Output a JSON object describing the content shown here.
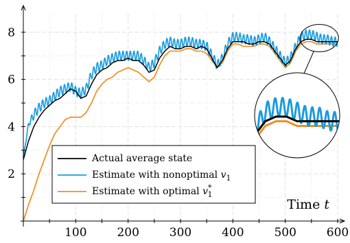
{
  "chart_data": {
    "type": "line",
    "xlabel": "Time t",
    "xlabel_text": "Time",
    "xlabel_var": "t",
    "ylabel": "",
    "xlim": [
      0,
      600
    ],
    "ylim": [
      0,
      8.9
    ],
    "x_ticks": [
      100,
      200,
      300,
      400,
      500,
      600
    ],
    "x_tick_labels": [
      "100",
      "200",
      "300",
      "400",
      "500",
      "600"
    ],
    "y_ticks": [
      2,
      4,
      6,
      8
    ],
    "y_tick_labels": [
      "2",
      "4",
      "6",
      "8"
    ],
    "grid": true,
    "legend_position": "bottom-left",
    "inset_zoom": {
      "x_range": [
        520,
        600
      ],
      "y_range": [
        7.2,
        8.2
      ],
      "placement": "right, below the series"
    },
    "series": [
      {
        "name": "Actual average state",
        "color": "#000000",
        "x": [
          0,
          5,
          10,
          20,
          30,
          40,
          50,
          60,
          70,
          80,
          90,
          100,
          110,
          120,
          130,
          140,
          150,
          160,
          170,
          180,
          190,
          200,
          210,
          220,
          230,
          240,
          250,
          260,
          270,
          280,
          290,
          300,
          310,
          320,
          330,
          340,
          350,
          360,
          370,
          380,
          390,
          400,
          410,
          420,
          430,
          440,
          450,
          460,
          470,
          480,
          490,
          500,
          510,
          520,
          530,
          540,
          550,
          560,
          570,
          580,
          590,
          600
        ],
        "values": [
          2.6,
          3.0,
          3.4,
          4.0,
          4.4,
          4.7,
          4.9,
          5.1,
          5.2,
          5.4,
          5.6,
          5.5,
          5.2,
          5.3,
          5.8,
          6.2,
          6.4,
          6.5,
          6.7,
          6.8,
          6.8,
          6.9,
          6.8,
          6.8,
          6.6,
          6.3,
          6.4,
          6.9,
          7.2,
          7.4,
          7.3,
          7.3,
          7.4,
          7.4,
          7.3,
          7.4,
          7.3,
          6.9,
          6.5,
          6.8,
          7.3,
          7.6,
          7.6,
          7.6,
          7.5,
          7.5,
          7.6,
          7.6,
          7.5,
          7.2,
          6.9,
          6.6,
          6.8,
          7.3,
          7.6,
          7.7,
          7.7,
          7.6,
          7.6,
          7.6,
          7.6,
          7.6
        ]
      },
      {
        "name": "Estimate with nonoptimal v1",
        "color": "#1a9cdf",
        "x": [
          0,
          5,
          10,
          20,
          30,
          40,
          50,
          60,
          70,
          80,
          90,
          100,
          110,
          120,
          130,
          140,
          150,
          160,
          170,
          180,
          190,
          200,
          210,
          220,
          230,
          240,
          250,
          260,
          270,
          280,
          290,
          300,
          310,
          320,
          330,
          340,
          350,
          360,
          370,
          380,
          390,
          400,
          410,
          420,
          430,
          440,
          450,
          460,
          470,
          480,
          490,
          500,
          510,
          520,
          530,
          540,
          550,
          560,
          570,
          580,
          590,
          600
        ],
        "values": [
          2.7,
          3.4,
          4.1,
          4.5,
          4.8,
          5.0,
          5.1,
          5.3,
          5.5,
          5.6,
          5.7,
          5.5,
          5.4,
          5.6,
          6.2,
          6.5,
          6.6,
          6.8,
          6.9,
          7.0,
          7.0,
          7.0,
          7.0,
          7.0,
          6.8,
          6.5,
          6.7,
          7.2,
          7.5,
          7.6,
          7.5,
          7.5,
          7.6,
          7.6,
          7.5,
          7.5,
          7.4,
          7.0,
          6.6,
          6.9,
          7.5,
          7.8,
          7.8,
          7.7,
          7.7,
          7.6,
          7.7,
          7.8,
          7.6,
          7.3,
          7.0,
          6.7,
          6.9,
          7.4,
          7.8,
          7.9,
          7.9,
          7.8,
          7.7,
          7.7,
          7.6,
          7.6
        ],
        "oscillation_amplitude": 0.2
      },
      {
        "name": "Estimate with optimal v1*",
        "color": "#f28c1c",
        "x": [
          0,
          5,
          10,
          20,
          30,
          40,
          50,
          60,
          70,
          80,
          90,
          100,
          110,
          120,
          130,
          140,
          150,
          160,
          170,
          180,
          190,
          200,
          210,
          220,
          230,
          240,
          250,
          260,
          270,
          280,
          290,
          300,
          310,
          320,
          330,
          340,
          350,
          360,
          370,
          380,
          390,
          400,
          410,
          420,
          430,
          440,
          450,
          460,
          470,
          480,
          490,
          500,
          510,
          520,
          530,
          540,
          550,
          560,
          570,
          580,
          590,
          600
        ],
        "values": [
          0.0,
          0.35,
          0.7,
          1.3,
          2.0,
          2.6,
          3.2,
          3.7,
          4.0,
          4.3,
          4.4,
          4.4,
          4.4,
          4.6,
          5.0,
          5.5,
          5.8,
          6.0,
          6.1,
          6.3,
          6.4,
          6.5,
          6.4,
          6.3,
          6.1,
          5.9,
          6.1,
          6.6,
          7.0,
          7.2,
          7.2,
          7.2,
          7.3,
          7.3,
          7.2,
          7.2,
          7.1,
          6.8,
          6.5,
          6.7,
          7.2,
          7.5,
          7.5,
          7.4,
          7.4,
          7.4,
          7.5,
          7.5,
          7.4,
          7.1,
          6.8,
          6.5,
          6.7,
          7.2,
          7.5,
          7.6,
          7.6,
          7.5,
          7.5,
          7.5,
          7.5,
          7.5
        ]
      }
    ]
  },
  "legend": {
    "items": [
      {
        "label": "Actual average state",
        "label_text": "Actual average state",
        "label_var": "",
        "label_sup": "",
        "color": "#000000"
      },
      {
        "label": "Estimate with nonoptimal v1",
        "label_text": "Estimate with nonoptimal ",
        "label_var": "v",
        "label_sub": "1",
        "label_sup": "",
        "color": "#1a9cdf"
      },
      {
        "label": "Estimate with optimal v1*",
        "label_text": "Estimate with optimal ",
        "label_var": "v",
        "label_sub": "1",
        "label_sup": "*",
        "color": "#f28c1c"
      }
    ]
  }
}
